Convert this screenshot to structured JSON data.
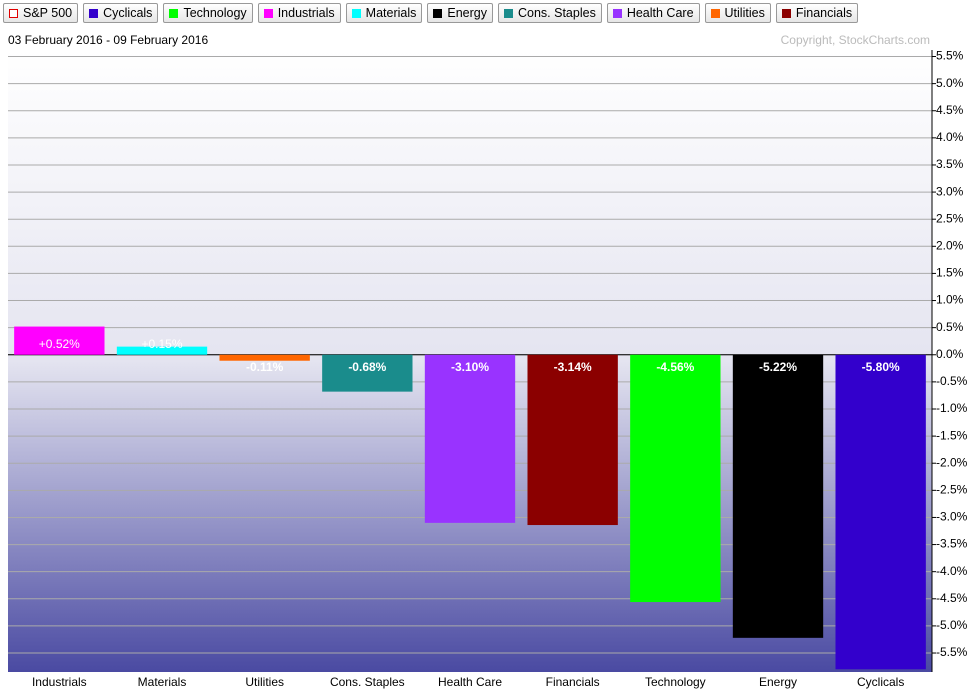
{
  "chart_data": {
    "type": "bar",
    "legend": [
      {
        "name": "S&P 500",
        "color": "#e00000",
        "hollow": true
      },
      {
        "name": "Cyclicals",
        "color": "#3300cc"
      },
      {
        "name": "Technology",
        "color": "#00ff00"
      },
      {
        "name": "Industrials",
        "color": "#ff00ff"
      },
      {
        "name": "Materials",
        "color": "#00ffff"
      },
      {
        "name": "Energy",
        "color": "#000000"
      },
      {
        "name": "Cons. Staples",
        "color": "#1a8c8c"
      },
      {
        "name": "Health Care",
        "color": "#9933ff"
      },
      {
        "name": "Utilities",
        "color": "#ff6600"
      },
      {
        "name": "Financials",
        "color": "#8b0000"
      }
    ],
    "date_range": "03 February 2016 - 09 February 2016",
    "copyright": "Copyright, StockCharts.com",
    "categories": [
      "Industrials",
      "Materials",
      "Utilities",
      "Cons. Staples",
      "Health Care",
      "Financials",
      "Technology",
      "Energy",
      "Cyclicals"
    ],
    "values": [
      0.52,
      0.15,
      -0.11,
      -0.68,
      -3.1,
      -3.14,
      -4.56,
      -5.22,
      -5.8
    ],
    "value_labels": [
      "+0.52%",
      "+0.15%",
      "-0.11%",
      "-0.68%",
      "-3.10%",
      "-3.14%",
      "-4.56%",
      "-5.22%",
      "-5.80%"
    ],
    "colors": [
      "#ff00ff",
      "#00ffff",
      "#ff6600",
      "#1a8c8c",
      "#9933ff",
      "#8b0000",
      "#00ff00",
      "#000000",
      "#3300cc"
    ],
    "ylim": [
      -5.85,
      5.62
    ],
    "yticks": [
      {
        "value": 5.5,
        "label": "5.5%"
      },
      {
        "value": 5.0,
        "label": "5.0%"
      },
      {
        "value": 4.5,
        "label": "4.5%"
      },
      {
        "value": 4.0,
        "label": "4.0%"
      },
      {
        "value": 3.5,
        "label": "3.5%"
      },
      {
        "value": 3.0,
        "label": "3.0%"
      },
      {
        "value": 2.5,
        "label": "2.5%"
      },
      {
        "value": 2.0,
        "label": "2.0%"
      },
      {
        "value": 1.5,
        "label": "1.5%"
      },
      {
        "value": 1.0,
        "label": "1.0%"
      },
      {
        "value": 0.5,
        "label": "0.5%"
      },
      {
        "value": 0.0,
        "label": "0.0%"
      },
      {
        "value": -0.5,
        "label": "-0.5%"
      },
      {
        "value": -1.0,
        "label": "-1.0%"
      },
      {
        "value": -1.5,
        "label": "-1.5%"
      },
      {
        "value": -2.0,
        "label": "-2.0%"
      },
      {
        "value": -2.5,
        "label": "-2.5%"
      },
      {
        "value": -3.0,
        "label": "-3.0%"
      },
      {
        "value": -3.5,
        "label": "-3.5%"
      },
      {
        "value": -4.0,
        "label": "-4.0%"
      },
      {
        "value": -4.5,
        "label": "-4.5%"
      },
      {
        "value": -5.0,
        "label": "-5.0%"
      },
      {
        "value": -5.5,
        "label": "-5.5%"
      }
    ],
    "grid": true
  }
}
